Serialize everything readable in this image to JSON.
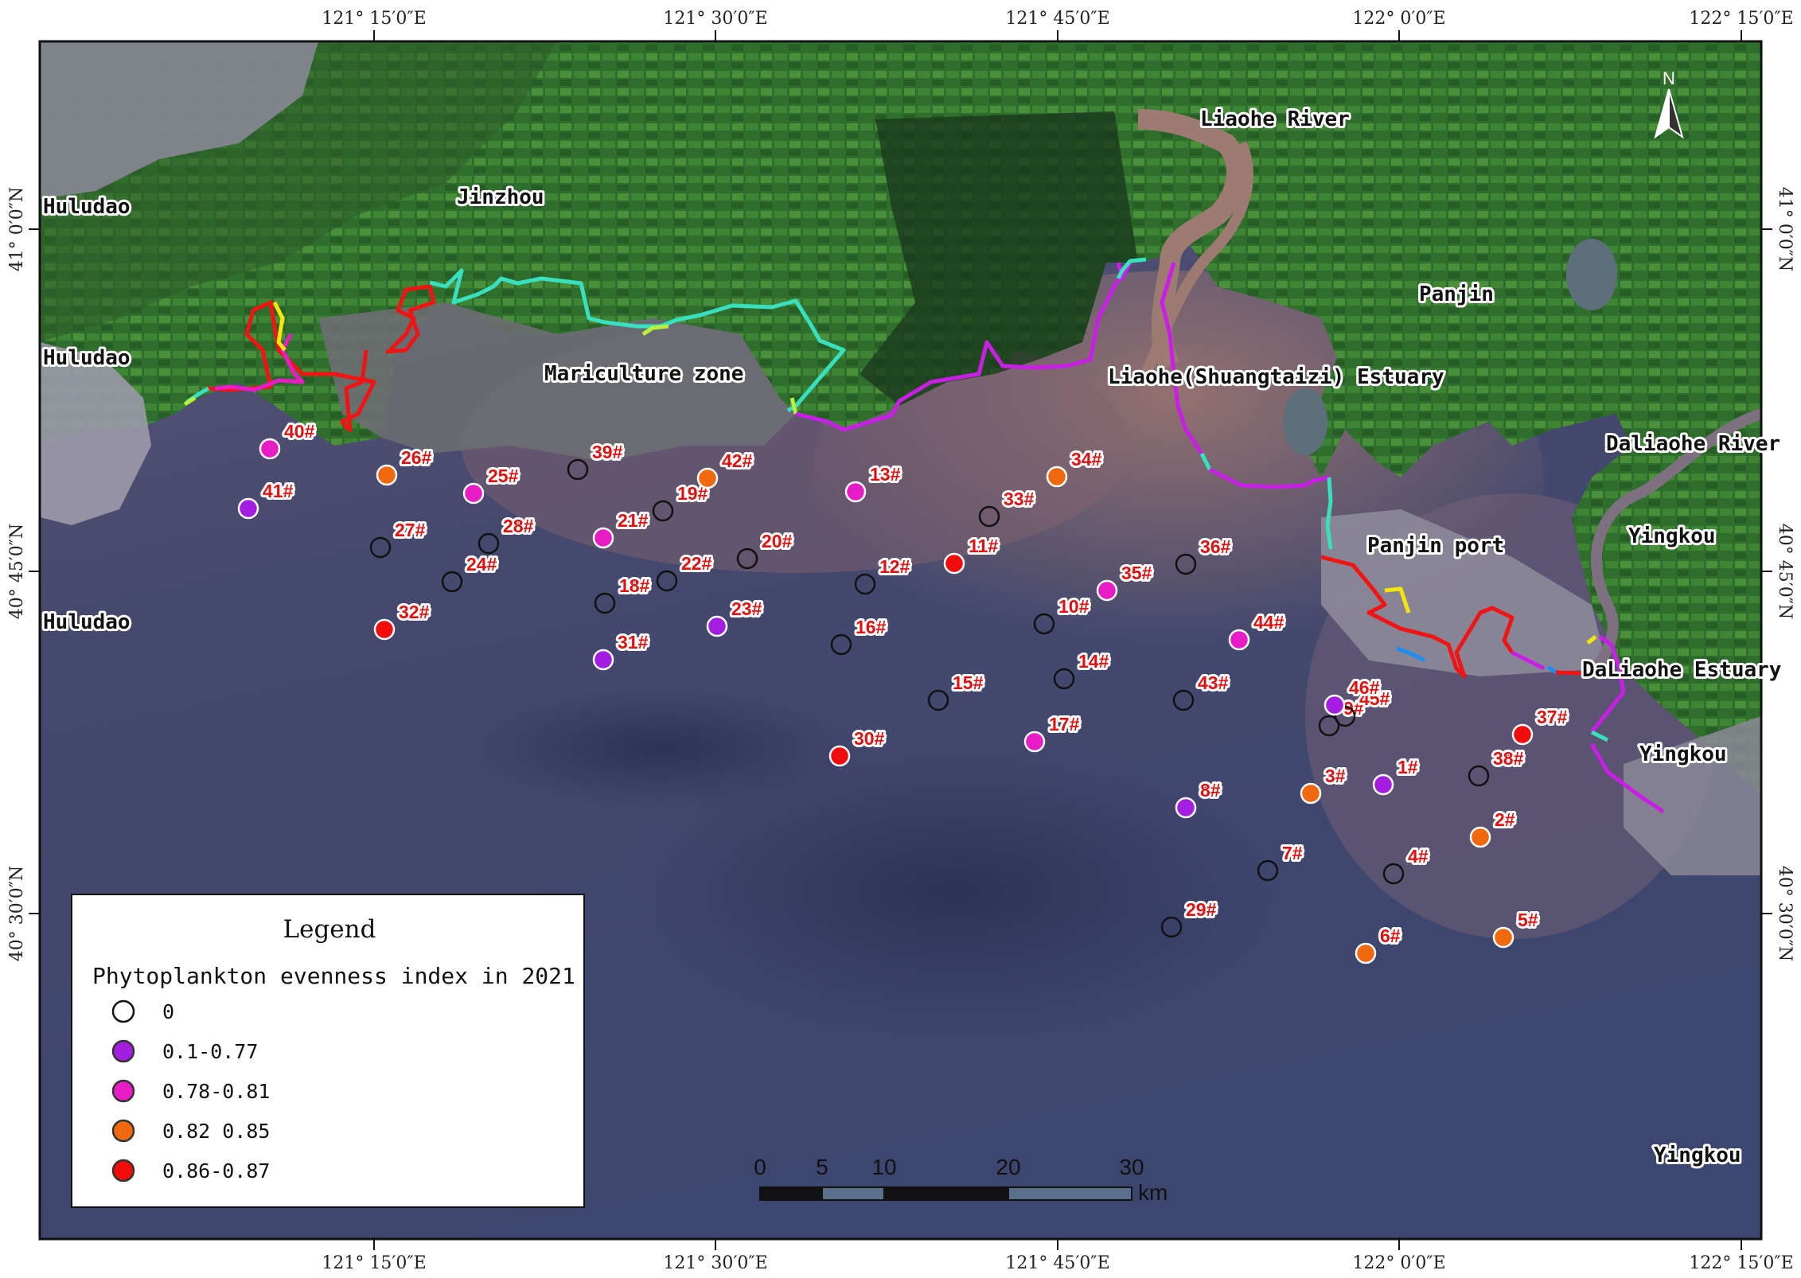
{
  "colors": {
    "class_0": "none",
    "class_1": "#a31ee0",
    "class_2": "#e81cc4",
    "class_3": "#f2680e",
    "class_4": "#f20d0d",
    "coast_red": "#f01414",
    "coast_cyan": "#38e0c0",
    "coast_magenta": "#c81ee6",
    "coast_yellow": "#f5e60a",
    "coast_blue": "#1e8cf0"
  },
  "axes": {
    "lon_ticks": [
      "121° 15′0″E",
      "121° 30′0″E",
      "121° 45′0″E",
      "122° 0′0″E",
      "122° 15′0″E"
    ],
    "lat_ticks": [
      "41° 0′0″N",
      "40° 45′0″N",
      "40° 30′0″N"
    ]
  },
  "north_label": "N",
  "places": [
    {
      "name": "Huludao",
      "key": "huludao-1"
    },
    {
      "name": "Jinzhou",
      "key": "jinzhou"
    },
    {
      "name": "Huludao",
      "key": "huludao-2"
    },
    {
      "name": "Mariculture zone",
      "key": "mariculture-zone"
    },
    {
      "name": "Huludao",
      "key": "huludao-3"
    },
    {
      "name": "Liaohe River",
      "key": "liaohe-river"
    },
    {
      "name": "Panjin",
      "key": "panjin"
    },
    {
      "name": "Liaohe(Shuangtaizi) Estuary",
      "key": "liaohe-estuary"
    },
    {
      "name": "Daliaohe River",
      "key": "daliaohe-river"
    },
    {
      "name": "Yingkou",
      "key": "yingkou-1"
    },
    {
      "name": "Panjin port",
      "key": "panjin-port"
    },
    {
      "name": "DaLiaohe Estuary",
      "key": "daliaohe-estuary"
    },
    {
      "name": "Yingkou",
      "key": "yingkou-2"
    },
    {
      "name": "Yingkou",
      "key": "yingkou-3"
    }
  ],
  "stations": [
    {
      "id": "1#",
      "cls": 1
    },
    {
      "id": "2#",
      "cls": 3
    },
    {
      "id": "3#",
      "cls": 3
    },
    {
      "id": "4#",
      "cls": 0
    },
    {
      "id": "5#",
      "cls": 3
    },
    {
      "id": "6#",
      "cls": 3
    },
    {
      "id": "7#",
      "cls": 0
    },
    {
      "id": "8#",
      "cls": 1
    },
    {
      "id": "9#",
      "cls": 0
    },
    {
      "id": "10#",
      "cls": 0
    },
    {
      "id": "11#",
      "cls": 4
    },
    {
      "id": "12#",
      "cls": 0
    },
    {
      "id": "13#",
      "cls": 2
    },
    {
      "id": "14#",
      "cls": 0
    },
    {
      "id": "15#",
      "cls": 0
    },
    {
      "id": "16#",
      "cls": 0
    },
    {
      "id": "17#",
      "cls": 2
    },
    {
      "id": "18#",
      "cls": 0
    },
    {
      "id": "19#",
      "cls": 0
    },
    {
      "id": "20#",
      "cls": 0
    },
    {
      "id": "21#",
      "cls": 2
    },
    {
      "id": "22#",
      "cls": 0
    },
    {
      "id": "23#",
      "cls": 1
    },
    {
      "id": "24#",
      "cls": 0
    },
    {
      "id": "25#",
      "cls": 2
    },
    {
      "id": "26#",
      "cls": 3
    },
    {
      "id": "27#",
      "cls": 0
    },
    {
      "id": "28#",
      "cls": 0
    },
    {
      "id": "29#",
      "cls": 0
    },
    {
      "id": "30#",
      "cls": 4
    },
    {
      "id": "31#",
      "cls": 1
    },
    {
      "id": "32#",
      "cls": 4
    },
    {
      "id": "33#",
      "cls": 0
    },
    {
      "id": "34#",
      "cls": 3
    },
    {
      "id": "35#",
      "cls": 2
    },
    {
      "id": "36#",
      "cls": 0
    },
    {
      "id": "37#",
      "cls": 4
    },
    {
      "id": "38#",
      "cls": 0
    },
    {
      "id": "39#",
      "cls": 0
    },
    {
      "id": "40#",
      "cls": 2
    },
    {
      "id": "41#",
      "cls": 1
    },
    {
      "id": "42#",
      "cls": 3
    },
    {
      "id": "43#",
      "cls": 0
    },
    {
      "id": "44#",
      "cls": 2
    },
    {
      "id": "45#",
      "cls": 0
    },
    {
      "id": "46#",
      "cls": 1
    }
  ],
  "legend": {
    "title": "Legend",
    "subtitle": "Phytoplankton evenness index in 2021",
    "items": [
      {
        "label": "0",
        "cls": 0
      },
      {
        "label": "0.1-0.77",
        "cls": 1
      },
      {
        "label": "0.78-0.81",
        "cls": 2
      },
      {
        "label": "0.82 0.85",
        "cls": 3
      },
      {
        "label": "0.86-0.87",
        "cls": 4
      }
    ]
  },
  "scale_bar": {
    "labels": [
      "0",
      "5",
      "10",
      "20",
      "30"
    ],
    "unit": "km"
  }
}
